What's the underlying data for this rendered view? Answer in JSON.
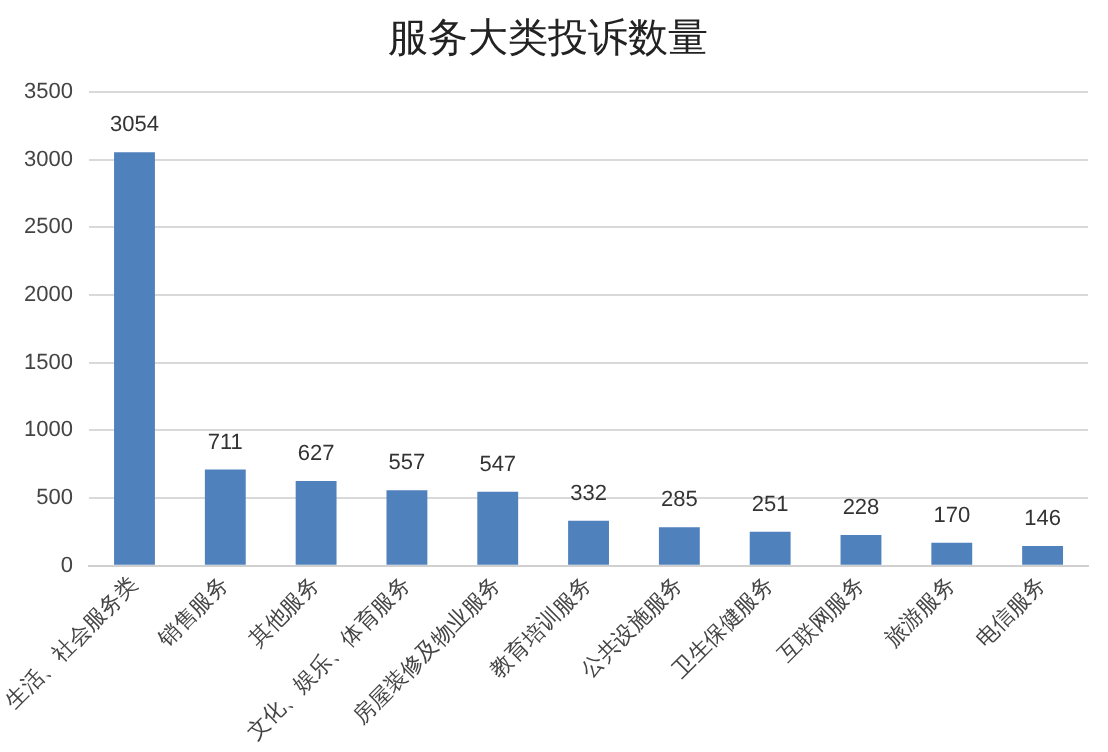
{
  "chart_data": {
    "type": "bar",
    "title": "服务大类投诉数量",
    "categories": [
      "生活、社会服务类",
      "销售服务",
      "其他服务",
      "文化、娱乐、体育服务",
      "房屋装修及物业服务",
      "教育培训服务",
      "公共设施服务",
      "卫生保健服务",
      "互联网服务",
      "旅游服务",
      "电信服务"
    ],
    "values": [
      3054,
      711,
      627,
      557,
      547,
      332,
      285,
      251,
      228,
      170,
      146
    ],
    "color": "#4f81bd",
    "ylim": [
      0,
      3500
    ],
    "yticks": [
      0,
      500,
      1000,
      1500,
      2000,
      2500,
      3000,
      3500
    ],
    "grid": "y",
    "data_labels": true
  }
}
